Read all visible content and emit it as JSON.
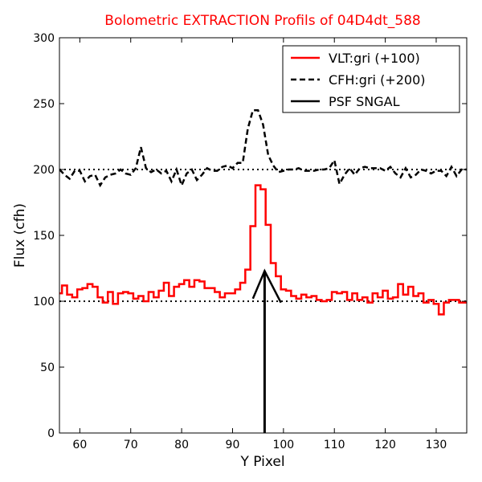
{
  "chart_data": {
    "type": "line",
    "title": "Bolometric EXTRACTION Profils of 04D4dt_588",
    "title_color": "#ff0000",
    "xlabel": "Y Pixel",
    "ylabel": "Flux (cfh)",
    "xlim": [
      56,
      136
    ],
    "ylim": [
      0,
      300
    ],
    "xticks": [
      60,
      70,
      80,
      90,
      100,
      110,
      120,
      130
    ],
    "yticks": [
      0,
      50,
      100,
      150,
      200,
      250,
      300
    ],
    "legend_position": "top-right",
    "reference_lines": [
      {
        "y": 100,
        "style": "dotted",
        "color": "#000000"
      },
      {
        "y": 200,
        "style": "dotted",
        "color": "#000000"
      }
    ],
    "series": [
      {
        "name": "VLT:gri (+100)",
        "color": "#ff0000",
        "style": "steps",
        "x": [
          56,
          57,
          58,
          59,
          60,
          61,
          62,
          63,
          64,
          65,
          66,
          67,
          68,
          69,
          70,
          71,
          72,
          73,
          74,
          75,
          76,
          77,
          78,
          79,
          80,
          81,
          82,
          83,
          84,
          85,
          86,
          87,
          88,
          89,
          90,
          91,
          92,
          93,
          94,
          95,
          96,
          97,
          98,
          99,
          100,
          101,
          102,
          103,
          104,
          105,
          106,
          107,
          108,
          109,
          110,
          111,
          112,
          113,
          114,
          115,
          116,
          117,
          118,
          119,
          120,
          121,
          122,
          123,
          124,
          125,
          126,
          127,
          128,
          129,
          130,
          131,
          132,
          133,
          134,
          135,
          136
        ],
        "y": [
          106,
          112,
          105,
          103,
          109,
          110,
          113,
          111,
          103,
          99,
          107,
          98,
          106,
          107,
          106,
          102,
          104,
          100,
          107,
          103,
          108,
          114,
          104,
          111,
          113,
          116,
          111,
          116,
          115,
          110,
          110,
          107,
          103,
          106,
          106,
          109,
          114,
          124,
          157,
          188,
          185,
          158,
          129,
          119,
          109,
          108,
          104,
          102,
          105,
          103,
          104,
          101,
          100,
          101,
          107,
          106,
          107,
          101,
          106,
          101,
          103,
          99,
          106,
          103,
          108,
          102,
          103,
          113,
          105,
          111,
          104,
          106,
          99,
          101,
          98,
          90,
          99,
          101,
          101,
          99,
          99
        ]
      },
      {
        "name": "CFH:gri (+200)",
        "color": "#000000",
        "style": "dashed",
        "x": [
          56,
          57,
          58,
          59,
          60,
          61,
          62,
          63,
          64,
          65,
          66,
          67,
          68,
          69,
          70,
          71,
          72,
          73,
          74,
          75,
          76,
          77,
          78,
          79,
          80,
          81,
          82,
          83,
          84,
          85,
          86,
          87,
          88,
          89,
          90,
          91,
          92,
          93,
          94,
          95,
          96,
          97,
          98,
          99,
          100,
          101,
          102,
          103,
          104,
          105,
          106,
          107,
          108,
          109,
          110,
          111,
          112,
          113,
          114,
          115,
          116,
          117,
          118,
          119,
          120,
          121,
          122,
          123,
          124,
          125,
          126,
          127,
          128,
          129,
          130,
          131,
          132,
          133,
          134,
          135,
          136
        ],
        "y": [
          200,
          196,
          193,
          199,
          199,
          191,
          195,
          196,
          188,
          194,
          196,
          197,
          200,
          197,
          196,
          201,
          217,
          201,
          198,
          200,
          197,
          199,
          191,
          200,
          188,
          197,
          200,
          192,
          196,
          201,
          199,
          199,
          202,
          203,
          201,
          205,
          205,
          231,
          245,
          245,
          234,
          211,
          203,
          198,
          199,
          200,
          200,
          201,
          199,
          199,
          199,
          200,
          200,
          201,
          207,
          189,
          196,
          201,
          196,
          201,
          202,
          201,
          201,
          201,
          199,
          202,
          197,
          194,
          201,
          194,
          196,
          200,
          199,
          197,
          199,
          199,
          195,
          202,
          195,
          200,
          200
        ]
      },
      {
        "name": "PSF SNGAL",
        "color": "#000000",
        "style": "solid",
        "x": [
          94,
          96.3,
          99.5
        ],
        "y": [
          102,
          123,
          99
        ]
      }
    ],
    "markers": [
      {
        "type": "vertical-line",
        "x": 96.3,
        "y_from": 0,
        "y_to": 123,
        "color": "#000000"
      }
    ]
  }
}
